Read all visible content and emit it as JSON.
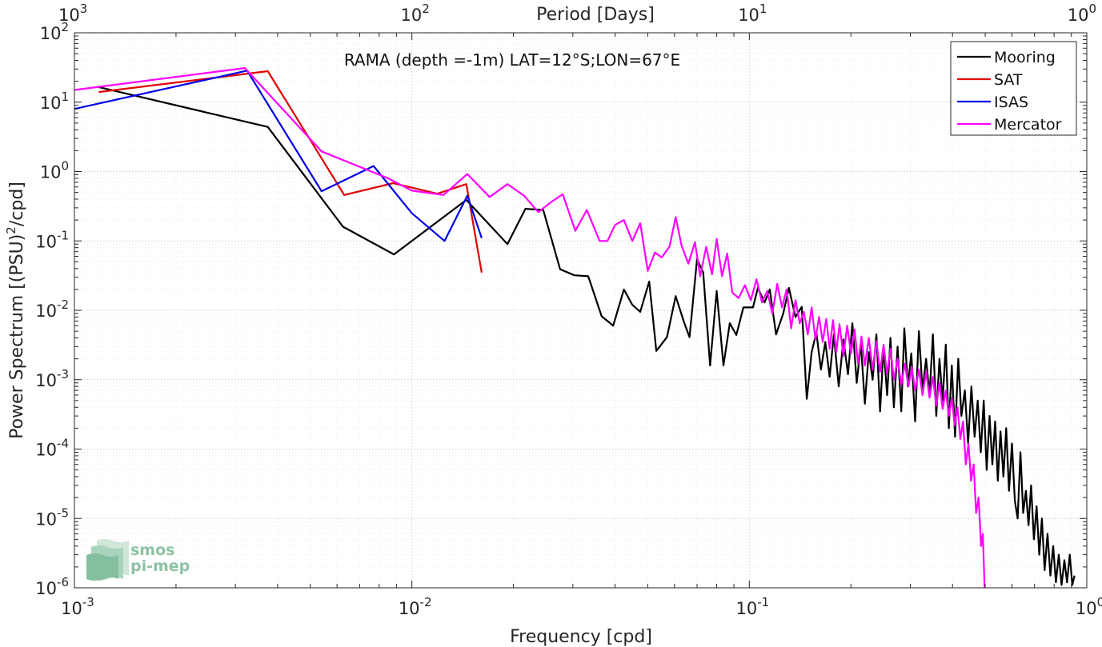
{
  "chart_data": {
    "type": "line",
    "title": "RAMA (depth =-1m) LAT=12°S;LON=67°E",
    "xlabel": "Frequency [cpd]",
    "ylabel_main": "Power Spectrum [(PSU)",
    "ylabel_exp": "2",
    "ylabel_tail": "/cpd]",
    "top_xlabel": "Period [Days]",
    "xscale": "log",
    "yscale": "log",
    "xlim": [
      0.001,
      1
    ],
    "ylim": [
      1e-06,
      100
    ],
    "grid": true,
    "minor_grid": true,
    "legend_position": "top-right",
    "x_ticks": [
      {
        "base": "10",
        "exp": "-3"
      },
      {
        "base": "10",
        "exp": "-2"
      },
      {
        "base": "10",
        "exp": "-1"
      },
      {
        "base": "10",
        "exp": "0"
      }
    ],
    "y_ticks": [
      {
        "base": "10",
        "exp": "-6"
      },
      {
        "base": "10",
        "exp": "-5"
      },
      {
        "base": "10",
        "exp": "-4"
      },
      {
        "base": "10",
        "exp": "-3"
      },
      {
        "base": "10",
        "exp": "-2"
      },
      {
        "base": "10",
        "exp": "-1"
      },
      {
        "base": "10",
        "exp": "0"
      },
      {
        "base": "10",
        "exp": "1"
      },
      {
        "base": "10",
        "exp": "2"
      }
    ],
    "top_ticks": [
      {
        "base": "10",
        "exp": "3"
      },
      {
        "base": "10",
        "exp": "2"
      },
      {
        "base": "10",
        "exp": "1"
      },
      {
        "base": "10",
        "exp": "0"
      }
    ],
    "series": [
      {
        "name": "Mooring",
        "color": "#000000",
        "points": [
          [
            0.00118,
            16.5
          ],
          [
            0.00374,
            4.4
          ],
          [
            0.00625,
            0.16
          ],
          [
            0.00885,
            0.064
          ],
          [
            0.0145,
            0.39
          ],
          [
            0.0192,
            0.09
          ],
          [
            0.0217,
            0.29
          ],
          [
            0.0245,
            0.28
          ],
          [
            0.0275,
            0.039
          ],
          [
            0.0303,
            0.032
          ],
          [
            0.0333,
            0.031
          ],
          [
            0.0365,
            0.0082
          ],
          [
            0.0395,
            0.006
          ],
          [
            0.0425,
            0.02
          ],
          [
            0.045,
            0.012
          ],
          [
            0.0475,
            0.0095
          ],
          [
            0.0505,
            0.026
          ],
          [
            0.053,
            0.0026
          ],
          [
            0.057,
            0.0041
          ],
          [
            0.0605,
            0.016
          ],
          [
            0.064,
            0.0068
          ],
          [
            0.0665,
            0.0041
          ],
          [
            0.07,
            0.055
          ],
          [
            0.073,
            0.035
          ],
          [
            0.0765,
            0.0016
          ],
          [
            0.08,
            0.019
          ],
          [
            0.0838,
            0.0016
          ],
          [
            0.0875,
            0.0065
          ],
          [
            0.0915,
            0.0044
          ],
          [
            0.096,
            0.011
          ],
          [
            0.1025,
            0.011
          ],
          [
            0.106,
            0.021
          ],
          [
            0.111,
            0.013
          ],
          [
            0.115,
            0.02
          ],
          [
            0.12,
            0.0045
          ],
          [
            0.126,
            0.009
          ],
          [
            0.131,
            0.021
          ],
          [
            0.137,
            0.008
          ],
          [
            0.143,
            0.0112
          ],
          [
            0.148,
            0.00053
          ],
          [
            0.153,
            0.0025
          ],
          [
            0.158,
            0.0048
          ],
          [
            0.163,
            0.0014
          ],
          [
            0.168,
            0.0035
          ],
          [
            0.173,
            0.0011
          ],
          [
            0.178,
            0.0045
          ],
          [
            0.184,
            0.0008
          ],
          [
            0.19,
            0.0038
          ],
          [
            0.196,
            0.0012
          ],
          [
            0.202,
            0.0065
          ],
          [
            0.208,
            0.0009
          ],
          [
            0.214,
            0.0033
          ],
          [
            0.22,
            0.00045
          ],
          [
            0.226,
            0.0025
          ],
          [
            0.232,
            0.001
          ],
          [
            0.238,
            0.0045
          ],
          [
            0.244,
            0.00035
          ],
          [
            0.25,
            0.003
          ],
          [
            0.256,
            0.0006
          ],
          [
            0.262,
            0.004
          ],
          [
            0.268,
            0.0004
          ],
          [
            0.275,
            0.003
          ],
          [
            0.282,
            0.00035
          ],
          [
            0.288,
            0.0055
          ],
          [
            0.295,
            0.0008
          ],
          [
            0.302,
            0.0024
          ],
          [
            0.31,
            0.00025
          ],
          [
            0.318,
            0.005
          ],
          [
            0.326,
            0.0007
          ],
          [
            0.334,
            0.002
          ],
          [
            0.342,
            0.0006
          ],
          [
            0.35,
            0.0045
          ],
          [
            0.358,
            0.0003
          ],
          [
            0.366,
            0.002
          ],
          [
            0.374,
            0.0005
          ],
          [
            0.382,
            0.0032
          ],
          [
            0.39,
            0.0002
          ],
          [
            0.398,
            0.0016
          ],
          [
            0.407,
            0.00015
          ],
          [
            0.416,
            0.002
          ],
          [
            0.425,
            0.0003
          ],
          [
            0.435,
            0.0007
          ],
          [
            0.445,
            0.00012
          ],
          [
            0.455,
            0.0008
          ],
          [
            0.465,
            0.00015
          ],
          [
            0.475,
            0.0005
          ],
          [
            0.485,
            9e-05
          ],
          [
            0.495,
            0.0005
          ],
          [
            0.505,
            5e-05
          ],
          [
            0.515,
            0.0003
          ],
          [
            0.525,
            6e-05
          ],
          [
            0.535,
            0.00025
          ],
          [
            0.545,
            3.5e-05
          ],
          [
            0.555,
            0.00018
          ],
          [
            0.566,
            4e-05
          ],
          [
            0.577,
            0.0002
          ],
          [
            0.588,
            2.5e-05
          ],
          [
            0.6,
            0.00012
          ],
          [
            0.612,
            1.8e-05
          ],
          [
            0.624,
            1e-05
          ],
          [
            0.636,
            9e-05
          ],
          [
            0.648,
            1.2e-05
          ],
          [
            0.66,
            2.5e-05
          ],
          [
            0.672,
            8e-06
          ],
          [
            0.684,
            3e-05
          ],
          [
            0.697,
            5e-06
          ],
          [
            0.71,
            1.5e-05
          ],
          [
            0.723,
            3e-06
          ],
          [
            0.736,
            1e-05
          ],
          [
            0.75,
            1.8e-06
          ],
          [
            0.765,
            6e-06
          ],
          [
            0.78,
            1.5e-06
          ],
          [
            0.795,
            4e-06
          ],
          [
            0.81,
            1.2e-06
          ],
          [
            0.826,
            3e-06
          ],
          [
            0.842,
            1.1e-06
          ],
          [
            0.858,
            2.5e-06
          ],
          [
            0.874,
            1.2e-06
          ],
          [
            0.89,
            3e-06
          ],
          [
            0.906,
            1.1e-06
          ],
          [
            0.92,
            1.5e-06
          ]
        ]
      },
      {
        "name": "SAT",
        "color": "#e00000",
        "points": [
          [
            0.00118,
            14.0
          ],
          [
            0.00374,
            28.0
          ],
          [
            0.0063,
            0.46
          ],
          [
            0.0088,
            0.68
          ],
          [
            0.0119,
            0.48
          ],
          [
            0.0145,
            0.66
          ],
          [
            0.0161,
            0.035
          ]
        ]
      },
      {
        "name": "ISAS",
        "color": "#0000e6",
        "points": [
          [
            0.001,
            8.0
          ],
          [
            0.00325,
            28.5
          ],
          [
            0.0054,
            0.52
          ],
          [
            0.0077,
            1.2
          ],
          [
            0.01,
            0.25
          ],
          [
            0.0125,
            0.1
          ],
          [
            0.0146,
            0.45
          ],
          [
            0.0161,
            0.11
          ]
        ]
      },
      {
        "name": "Mercator",
        "color": "#ff00ff",
        "points": [
          [
            0.001,
            15.0
          ],
          [
            0.0032,
            31.0
          ],
          [
            0.0054,
            1.95
          ],
          [
            0.0085,
            0.8
          ],
          [
            0.01,
            0.53
          ],
          [
            0.0124,
            0.46
          ],
          [
            0.0146,
            0.92
          ],
          [
            0.017,
            0.43
          ],
          [
            0.0192,
            0.66
          ],
          [
            0.0215,
            0.45
          ],
          [
            0.0237,
            0.26
          ],
          [
            0.0258,
            0.36
          ],
          [
            0.028,
            0.47
          ],
          [
            0.0305,
            0.14
          ],
          [
            0.033,
            0.28
          ],
          [
            0.036,
            0.1
          ],
          [
            0.038,
            0.1
          ],
          [
            0.04,
            0.17
          ],
          [
            0.0425,
            0.2
          ],
          [
            0.045,
            0.1
          ],
          [
            0.0475,
            0.18
          ],
          [
            0.05,
            0.037
          ],
          [
            0.0525,
            0.068
          ],
          [
            0.055,
            0.058
          ],
          [
            0.058,
            0.083
          ],
          [
            0.0605,
            0.22
          ],
          [
            0.063,
            0.085
          ],
          [
            0.066,
            0.047
          ],
          [
            0.069,
            0.096
          ],
          [
            0.0715,
            0.031
          ],
          [
            0.0745,
            0.082
          ],
          [
            0.0775,
            0.033
          ],
          [
            0.08,
            0.107
          ],
          [
            0.083,
            0.031
          ],
          [
            0.086,
            0.066
          ],
          [
            0.089,
            0.018
          ],
          [
            0.093,
            0.015
          ],
          [
            0.097,
            0.023
          ],
          [
            0.101,
            0.014
          ],
          [
            0.105,
            0.028
          ],
          [
            0.109,
            0.013
          ],
          [
            0.113,
            0.019
          ],
          [
            0.117,
            0.009
          ],
          [
            0.121,
            0.024
          ],
          [
            0.125,
            0.011
          ],
          [
            0.129,
            0.02
          ],
          [
            0.133,
            0.0055
          ],
          [
            0.137,
            0.014
          ],
          [
            0.141,
            0.0065
          ],
          [
            0.145,
            0.0095
          ],
          [
            0.149,
            0.0045
          ],
          [
            0.153,
            0.011
          ],
          [
            0.157,
            0.0038
          ],
          [
            0.161,
            0.008
          ],
          [
            0.165,
            0.0035
          ],
          [
            0.169,
            0.0075
          ],
          [
            0.173,
            0.0028
          ],
          [
            0.177,
            0.0072
          ],
          [
            0.181,
            0.0025
          ],
          [
            0.185,
            0.0063
          ],
          [
            0.19,
            0.0022
          ],
          [
            0.195,
            0.006
          ],
          [
            0.2,
            0.0024
          ],
          [
            0.205,
            0.0053
          ],
          [
            0.21,
            0.0017
          ],
          [
            0.215,
            0.0042
          ],
          [
            0.22,
            0.0016
          ],
          [
            0.226,
            0.004
          ],
          [
            0.232,
            0.0014
          ],
          [
            0.238,
            0.0036
          ],
          [
            0.244,
            0.0013
          ],
          [
            0.25,
            0.0032
          ],
          [
            0.256,
            0.0012
          ],
          [
            0.262,
            0.0028
          ],
          [
            0.268,
            0.001
          ],
          [
            0.275,
            0.002
          ],
          [
            0.282,
            0.00085
          ],
          [
            0.289,
            0.0017
          ],
          [
            0.296,
            0.0008
          ],
          [
            0.303,
            0.0015
          ],
          [
            0.31,
            0.0007
          ],
          [
            0.318,
            0.0014
          ],
          [
            0.326,
            0.0006
          ],
          [
            0.334,
            0.0013
          ],
          [
            0.342,
            0.00055
          ],
          [
            0.35,
            0.0011
          ],
          [
            0.358,
            0.00042
          ],
          [
            0.366,
            0.0009
          ],
          [
            0.374,
            0.00038
          ],
          [
            0.382,
            0.0007
          ],
          [
            0.39,
            0.0003
          ],
          [
            0.398,
            0.00055
          ],
          [
            0.406,
            0.00022
          ],
          [
            0.414,
            0.0004
          ],
          [
            0.422,
            0.00014
          ],
          [
            0.43,
            0.00025
          ],
          [
            0.438,
            6e-05
          ],
          [
            0.446,
            0.00012
          ],
          [
            0.454,
            3.5e-05
          ],
          [
            0.462,
            6e-05
          ],
          [
            0.47,
            1.2e-05
          ],
          [
            0.478,
            2e-05
          ],
          [
            0.486,
            4e-06
          ],
          [
            0.492,
            6e-06
          ],
          [
            0.498,
            1e-06
          ]
        ]
      }
    ]
  }
}
